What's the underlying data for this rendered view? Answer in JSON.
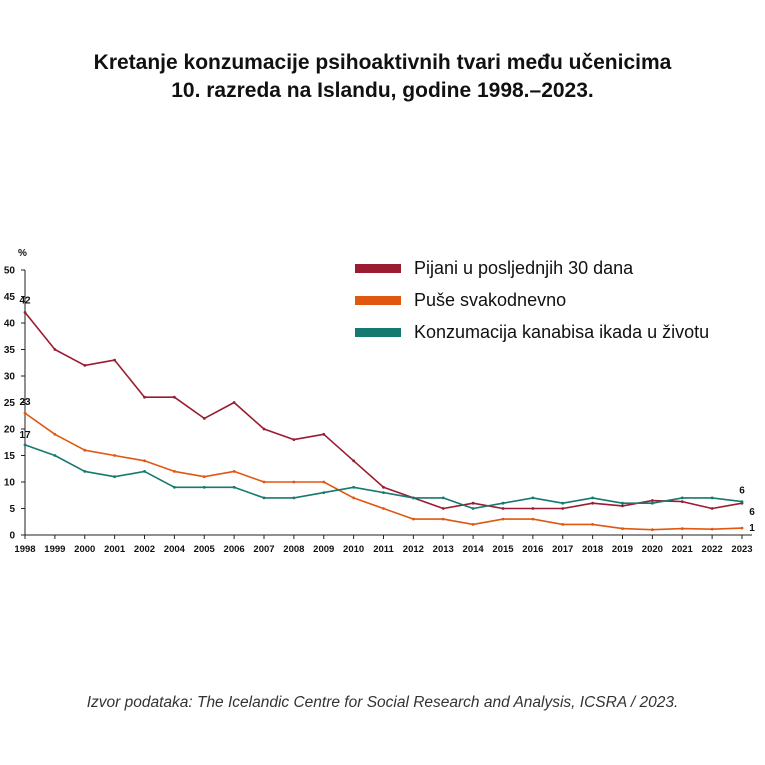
{
  "title": {
    "line1": "Kretanje konzumacije psihoaktivnih tvari među učenicima",
    "line2": "10. razreda na Islandu, godine 1998.–2023."
  },
  "source": "Izvor podataka: The Icelandic Centre for Social Research and Analysis, ICSRA / 2023.",
  "chart_data": {
    "type": "line",
    "ylabel": "%",
    "ylim": [
      0,
      50
    ],
    "yticks": [
      0,
      5,
      10,
      15,
      20,
      25,
      30,
      35,
      40,
      45,
      50
    ],
    "grid": false,
    "legend_position": "top-right",
    "categories": [
      "1998",
      "1999",
      "2000",
      "2001",
      "2002",
      "2004",
      "2005",
      "2006",
      "2007",
      "2008",
      "2009",
      "2010",
      "2011",
      "2012",
      "2013",
      "2014",
      "2015",
      "2016",
      "2017",
      "2018",
      "2019",
      "2020",
      "2021",
      "2022",
      "2023"
    ],
    "series": [
      {
        "name": "Pijani u posljednjih 30 dana",
        "color": "#9b1b30",
        "values": [
          42,
          35,
          32,
          33,
          26,
          26,
          22,
          25,
          20,
          18,
          19,
          14,
          9,
          7,
          5,
          6,
          5,
          5,
          5,
          6,
          5.5,
          6.5,
          6.3,
          5,
          6
        ],
        "data_labels": [
          {
            "index": 0,
            "text": "42"
          },
          {
            "index": 24,
            "text": "6"
          }
        ]
      },
      {
        "name": "Puše svakodnevno",
        "color": "#e0580f",
        "values": [
          23,
          19,
          16,
          15,
          14,
          12,
          11,
          12,
          10,
          10,
          10,
          7,
          5,
          3,
          3,
          2,
          3,
          3,
          2,
          2,
          1.2,
          1,
          1.2,
          1.1,
          1.3
        ],
        "data_labels": [
          {
            "index": 0,
            "text": "23"
          },
          {
            "index": 24,
            "text": "1"
          }
        ]
      },
      {
        "name": "Konzumacija kanabisa ikada u životu",
        "color": "#16796f",
        "values": [
          17,
          15,
          12,
          11,
          12,
          9,
          9,
          9,
          7,
          7,
          8,
          9,
          8,
          7,
          7,
          5,
          6,
          7,
          6,
          7,
          6,
          6,
          7,
          7,
          6.3
        ],
        "data_labels": [
          {
            "index": 0,
            "text": "17"
          },
          {
            "index": 24,
            "text": "6"
          }
        ]
      }
    ]
  }
}
